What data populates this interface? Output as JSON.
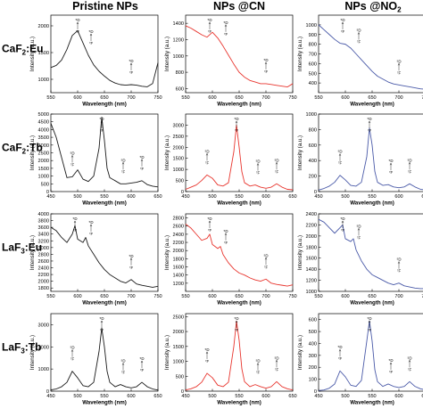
{
  "column_titles": [
    "Pristine NPs",
    "NPs @CN",
    "NPs @NO"
  ],
  "column_title_subscript": "2",
  "row_labels": [
    {
      "base": "CaF",
      "sub": "2",
      "tail": ":Eu"
    },
    {
      "base": "CaF",
      "sub": "2",
      "tail": ":Tb"
    },
    {
      "base": "LaF",
      "sub": "3",
      "tail": ":Eu"
    },
    {
      "base": "LaF",
      "sub": "3",
      "tail": ":Tb"
    }
  ],
  "colors": {
    "pristine": "#1a1a1a",
    "cn": "#e8352e",
    "no2": "#4a5aa8"
  },
  "chart_data": [
    {
      "type": "line",
      "row": 0,
      "col": 0,
      "xlabel": "Wavelength (nm)",
      "ylabel": "Intensity (a.u.)",
      "xlim": [
        550,
        750
      ],
      "ylim": [
        750,
        2200
      ],
      "xticks": [
        550,
        600,
        650,
        700,
        750
      ],
      "yticks": [
        1000,
        1500,
        2000
      ],
      "ann_x": [
        600,
        625,
        700
      ],
      "series": [
        {
          "x": [
            550,
            560,
            570,
            580,
            590,
            600,
            610,
            620,
            630,
            640,
            650,
            660,
            670,
            680,
            690,
            700,
            710,
            720,
            730,
            740,
            750
          ],
          "y": [
            1220,
            1260,
            1360,
            1560,
            1820,
            1910,
            1680,
            1450,
            1270,
            1150,
            1060,
            980,
            930,
            900,
            890,
            900,
            890,
            870,
            860,
            920,
            1310
          ]
        }
      ]
    },
    {
      "type": "line",
      "row": 0,
      "col": 1,
      "xlabel": "Wavelength (nm)",
      "ylabel": "Intensity (a.u.)",
      "xlim": [
        550,
        750
      ],
      "ylim": [
        550,
        1500
      ],
      "xticks": [
        550,
        600,
        650,
        700,
        750
      ],
      "yticks": [
        600,
        800,
        1000,
        1200,
        1400
      ],
      "ann_x": [
        595,
        625,
        700
      ],
      "series": [
        {
          "x": [
            550,
            560,
            570,
            580,
            590,
            600,
            610,
            620,
            630,
            640,
            650,
            660,
            670,
            680,
            690,
            700,
            710,
            720,
            730,
            740,
            750
          ],
          "y": [
            1370,
            1340,
            1300,
            1260,
            1230,
            1290,
            1220,
            1120,
            1010,
            900,
            800,
            740,
            700,
            680,
            660,
            660,
            650,
            640,
            630,
            620,
            660
          ]
        }
      ]
    },
    {
      "type": "line",
      "row": 0,
      "col": 2,
      "xlabel": "Wavelength (nm)",
      "ylabel": "Intensity (a.u.)",
      "xlim": [
        550,
        750
      ],
      "ylim": [
        300,
        1100
      ],
      "xticks": [
        550,
        600,
        650,
        700,
        750
      ],
      "yticks": [
        400,
        500,
        600,
        700,
        800,
        900,
        1000
      ],
      "ann_x": [
        595,
        625,
        700
      ],
      "series": [
        {
          "x": [
            550,
            560,
            570,
            580,
            590,
            600,
            610,
            620,
            630,
            640,
            650,
            660,
            670,
            680,
            690,
            700,
            710,
            720,
            730,
            740,
            750
          ],
          "y": [
            1000,
            950,
            900,
            850,
            810,
            800,
            760,
            700,
            640,
            580,
            520,
            470,
            440,
            410,
            390,
            380,
            370,
            360,
            350,
            340,
            335
          ]
        }
      ]
    },
    {
      "type": "line",
      "row": 1,
      "col": 0,
      "xlabel": "Wavelength (nm)",
      "ylabel": "Intensity (a.u.)",
      "xlim": [
        450,
        650
      ],
      "ylim": [
        0,
        5000
      ],
      "xticks": [
        450,
        500,
        550,
        600,
        650
      ],
      "yticks": [
        0,
        500,
        1000,
        1500,
        2000,
        2500,
        3000,
        3500,
        4000,
        4500,
        5000
      ],
      "ann_x": [
        490,
        545,
        585,
        620
      ],
      "series": [
        {
          "x": [
            450,
            460,
            470,
            480,
            490,
            500,
            510,
            520,
            530,
            540,
            545,
            550,
            555,
            560,
            570,
            580,
            590,
            600,
            610,
            620,
            630,
            640,
            650
          ],
          "y": [
            4400,
            3500,
            2200,
            900,
            950,
            1400,
            800,
            650,
            1000,
            2800,
            4800,
            3300,
            1500,
            900,
            700,
            500,
            500,
            550,
            600,
            700,
            450,
            350,
            300
          ]
        }
      ]
    },
    {
      "type": "line",
      "row": 1,
      "col": 1,
      "xlabel": "Wavelength (nm)",
      "ylabel": "Intensity (a.u.)",
      "xlim": [
        450,
        650
      ],
      "ylim": [
        0,
        3500
      ],
      "xticks": [
        450,
        500,
        550,
        600,
        650
      ],
      "yticks": [
        0,
        500,
        1000,
        1500,
        2000,
        2500,
        3000
      ],
      "ann_x": [
        490,
        545,
        585,
        620
      ],
      "series": [
        {
          "x": [
            450,
            460,
            470,
            480,
            490,
            500,
            510,
            520,
            530,
            540,
            545,
            550,
            555,
            560,
            570,
            580,
            590,
            600,
            610,
            620,
            630,
            640,
            650
          ],
          "y": [
            100,
            200,
            300,
            500,
            750,
            600,
            300,
            250,
            400,
            1800,
            3000,
            2000,
            900,
            400,
            250,
            300,
            200,
            150,
            200,
            350,
            200,
            100,
            80
          ]
        }
      ]
    },
    {
      "type": "line",
      "row": 1,
      "col": 2,
      "xlabel": "Wavelength (nm)",
      "ylabel": "Intensity (a.u.)",
      "xlim": [
        450,
        650
      ],
      "ylim": [
        0,
        1000
      ],
      "xticks": [
        450,
        500,
        550,
        600,
        650
      ],
      "yticks": [
        0,
        200,
        400,
        600,
        800,
        1000
      ],
      "ann_x": [
        490,
        545,
        585,
        620
      ],
      "series": [
        {
          "x": [
            450,
            460,
            470,
            480,
            490,
            500,
            510,
            520,
            530,
            540,
            545,
            550,
            555,
            560,
            570,
            580,
            590,
            600,
            610,
            620,
            630,
            640,
            650
          ],
          "y": [
            20,
            40,
            70,
            120,
            210,
            150,
            80,
            70,
            120,
            450,
            820,
            600,
            260,
            120,
            80,
            90,
            60,
            50,
            60,
            100,
            60,
            30,
            20
          ]
        }
      ]
    },
    {
      "type": "line",
      "row": 2,
      "col": 0,
      "xlabel": "Wavelength (nm)",
      "ylabel": "Intensity (a.u.)",
      "xlim": [
        550,
        750
      ],
      "ylim": [
        1700,
        4000
      ],
      "xticks": [
        550,
        600,
        650,
        700,
        750
      ],
      "yticks": [
        1800,
        2000,
        2200,
        2400,
        2600,
        2800,
        3000,
        3200,
        3400,
        3600,
        3800,
        4000
      ],
      "ann_x": [
        595,
        625,
        700
      ],
      "series": [
        {
          "x": [
            550,
            560,
            570,
            580,
            590,
            595,
            600,
            610,
            615,
            620,
            630,
            640,
            650,
            660,
            670,
            680,
            690,
            700,
            710,
            720,
            730,
            740,
            750
          ],
          "y": [
            3600,
            3500,
            3300,
            3150,
            3400,
            3650,
            3250,
            3150,
            3300,
            3050,
            2800,
            2550,
            2350,
            2200,
            2100,
            2000,
            1950,
            2050,
            1920,
            1880,
            1850,
            1820,
            1850
          ]
        }
      ]
    },
    {
      "type": "line",
      "row": 2,
      "col": 1,
      "xlabel": "Wavelength (nm)",
      "ylabel": "Intensity (a.u.)",
      "xlim": [
        550,
        750
      ],
      "ylim": [
        1000,
        2900
      ],
      "xticks": [
        550,
        600,
        650,
        700,
        750
      ],
      "yticks": [
        1200,
        1400,
        1600,
        1800,
        2000,
        2200,
        2400,
        2600,
        2800
      ],
      "ann_x": [
        595,
        625,
        700
      ],
      "series": [
        {
          "x": [
            550,
            560,
            570,
            580,
            590,
            595,
            600,
            610,
            615,
            620,
            630,
            640,
            650,
            660,
            670,
            680,
            690,
            700,
            710,
            720,
            730,
            740,
            750
          ],
          "y": [
            2650,
            2550,
            2400,
            2250,
            2300,
            2400,
            2150,
            2050,
            2100,
            1900,
            1700,
            1550,
            1450,
            1400,
            1330,
            1280,
            1250,
            1300,
            1200,
            1170,
            1150,
            1130,
            1160
          ]
        }
      ]
    },
    {
      "type": "line",
      "row": 2,
      "col": 2,
      "xlabel": "Wavelength (nm)",
      "ylabel": "Intensity (a.u.)",
      "xlim": [
        550,
        750
      ],
      "ylim": [
        1000,
        2400
      ],
      "xticks": [
        550,
        600,
        650,
        700,
        750
      ],
      "yticks": [
        1000,
        1200,
        1400,
        1600,
        1800,
        2000,
        2200,
        2400
      ],
      "ann_x": [
        595,
        625,
        700
      ],
      "series": [
        {
          "x": [
            550,
            560,
            570,
            580,
            590,
            595,
            600,
            610,
            615,
            620,
            630,
            640,
            650,
            660,
            670,
            680,
            690,
            700,
            710,
            720,
            730,
            740,
            750
          ],
          "y": [
            2300,
            2250,
            2150,
            2050,
            2150,
            2200,
            1950,
            1900,
            1950,
            1750,
            1550,
            1400,
            1300,
            1250,
            1200,
            1150,
            1120,
            1150,
            1100,
            1080,
            1060,
            1050,
            1050
          ]
        }
      ]
    },
    {
      "type": "line",
      "row": 3,
      "col": 0,
      "xlabel": "Wavelength (nm)",
      "ylabel": "Intensity (a.u.)",
      "xlim": [
        450,
        650
      ],
      "ylim": [
        0,
        3500
      ],
      "xticks": [
        450,
        500,
        550,
        600,
        650
      ],
      "yticks": [
        0,
        1000,
        2000,
        3000
      ],
      "ann_x": [
        490,
        545,
        585,
        620
      ],
      "series": [
        {
          "x": [
            450,
            460,
            470,
            480,
            490,
            500,
            510,
            520,
            530,
            540,
            545,
            550,
            555,
            560,
            570,
            580,
            590,
            600,
            610,
            620,
            630,
            640,
            650
          ],
          "y": [
            60,
            100,
            200,
            400,
            900,
            600,
            250,
            200,
            400,
            1800,
            2850,
            2000,
            900,
            400,
            200,
            300,
            200,
            150,
            200,
            400,
            200,
            100,
            50
          ]
        }
      ]
    },
    {
      "type": "line",
      "row": 3,
      "col": 1,
      "xlabel": "Wavelength (nm)",
      "ylabel": "Intensity (a.u.)",
      "xlim": [
        450,
        650
      ],
      "ylim": [
        0,
        2600
      ],
      "xticks": [
        450,
        500,
        550,
        600,
        650
      ],
      "yticks": [
        0,
        500,
        1000,
        1500,
        2000,
        2500
      ],
      "ann_x": [
        490,
        545,
        585,
        620
      ],
      "series": [
        {
          "x": [
            450,
            460,
            470,
            480,
            490,
            500,
            510,
            520,
            530,
            540,
            545,
            550,
            555,
            560,
            570,
            580,
            590,
            600,
            610,
            620,
            630,
            640,
            650
          ],
          "y": [
            40,
            80,
            150,
            300,
            600,
            450,
            200,
            150,
            300,
            1500,
            2350,
            1700,
            750,
            320,
            150,
            220,
            150,
            100,
            150,
            320,
            150,
            80,
            40
          ]
        }
      ]
    },
    {
      "type": "line",
      "row": 3,
      "col": 2,
      "xlabel": "Wavelength (nm)",
      "ylabel": "Intensity (a.u.)",
      "xlim": [
        450,
        650
      ],
      "ylim": [
        0,
        650
      ],
      "xticks": [
        450,
        500,
        550,
        600,
        650
      ],
      "yticks": [
        0,
        100,
        200,
        300,
        400,
        500,
        600
      ],
      "ann_x": [
        490,
        545,
        585,
        620
      ],
      "series": [
        {
          "x": [
            450,
            460,
            470,
            480,
            490,
            500,
            510,
            520,
            530,
            540,
            545,
            550,
            555,
            560,
            570,
            580,
            590,
            600,
            610,
            620,
            630,
            640,
            650
          ],
          "y": [
            5,
            10,
            25,
            60,
            170,
            120,
            50,
            40,
            90,
            420,
            590,
            420,
            180,
            80,
            40,
            60,
            40,
            30,
            40,
            80,
            40,
            20,
            10
          ]
        }
      ]
    }
  ]
}
